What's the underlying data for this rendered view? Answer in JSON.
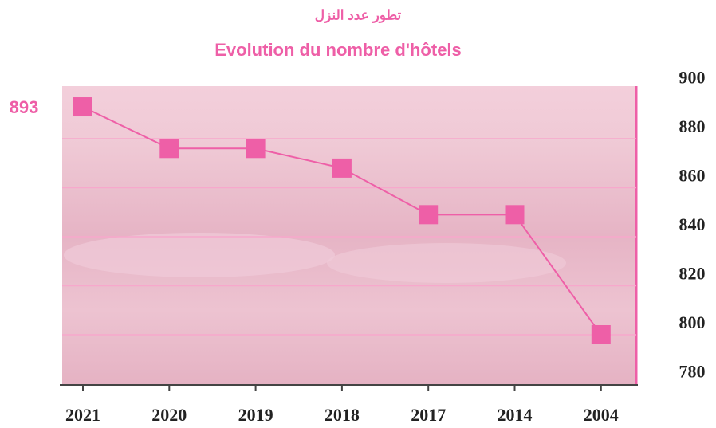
{
  "chart_data": {
    "type": "line",
    "title": "Evolution du nombre d'hôtels",
    "subtitle": "تطور عدد النزل",
    "categories": [
      "2021",
      "2020",
      "2019",
      "2018",
      "2017",
      "2014",
      "2004"
    ],
    "values": [
      893,
      876,
      876,
      868,
      849,
      849,
      800
    ],
    "value_labels": [
      "893",
      null,
      null,
      null,
      null,
      null,
      null
    ],
    "color": "#ee5fa7",
    "ylim": [
      780,
      900
    ],
    "yticks": [
      780,
      800,
      820,
      840,
      860,
      880,
      900
    ],
    "grid": true
  }
}
